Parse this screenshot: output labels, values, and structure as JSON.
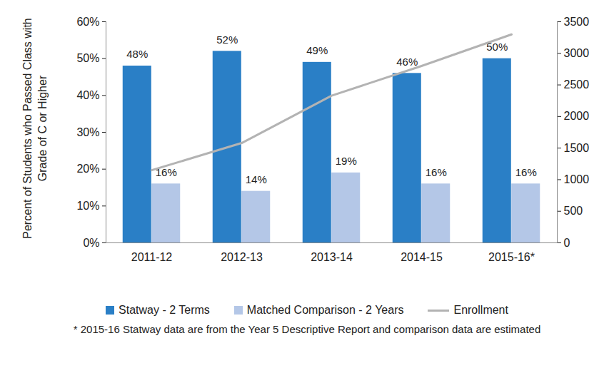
{
  "chart_data": {
    "type": "bar",
    "categories": [
      "2011-12",
      "2012-13",
      "2013-14",
      "2014-15",
      "2015-16*"
    ],
    "ylabel": "Percent of Students who Passed Class with Grade of C or Higher",
    "series": [
      {
        "name": "Statway - 2 Terms",
        "color": "#2a7fc6",
        "values": [
          48,
          52,
          49,
          46,
          50
        ],
        "value_labels": [
          "48%",
          "52%",
          "49%",
          "46%",
          "50%"
        ]
      },
      {
        "name": "Matched Comparison - 2 Years",
        "color": "#b4c7e7",
        "values": [
          16,
          14,
          19,
          16,
          16
        ],
        "value_labels": [
          "16%",
          "14%",
          "19%",
          "16%",
          "16%"
        ]
      },
      {
        "name": "Enrollment",
        "type": "line",
        "axis": "y2",
        "color": "#b3b3b3",
        "values": [
          1150,
          1580,
          2330,
          2800,
          3300
        ]
      }
    ],
    "ylim": [
      0,
      60
    ],
    "yticks": [
      {
        "value": 0,
        "label": "0%"
      },
      {
        "value": 10,
        "label": "10%"
      },
      {
        "value": 20,
        "label": "20%"
      },
      {
        "value": 30,
        "label": "30%"
      },
      {
        "value": 40,
        "label": "40%"
      },
      {
        "value": 50,
        "label": "50%"
      },
      {
        "value": 60,
        "label": "60%"
      }
    ],
    "y2lim": [
      0,
      3500
    ],
    "y2ticks": [
      0,
      500,
      1000,
      1500,
      2000,
      2500,
      3000,
      3500
    ],
    "data_labels": true,
    "legend": "bottom",
    "annotation": "* 2015-16 Statway data are from the Year 5 Descriptive Report and comparison data are estimated"
  }
}
